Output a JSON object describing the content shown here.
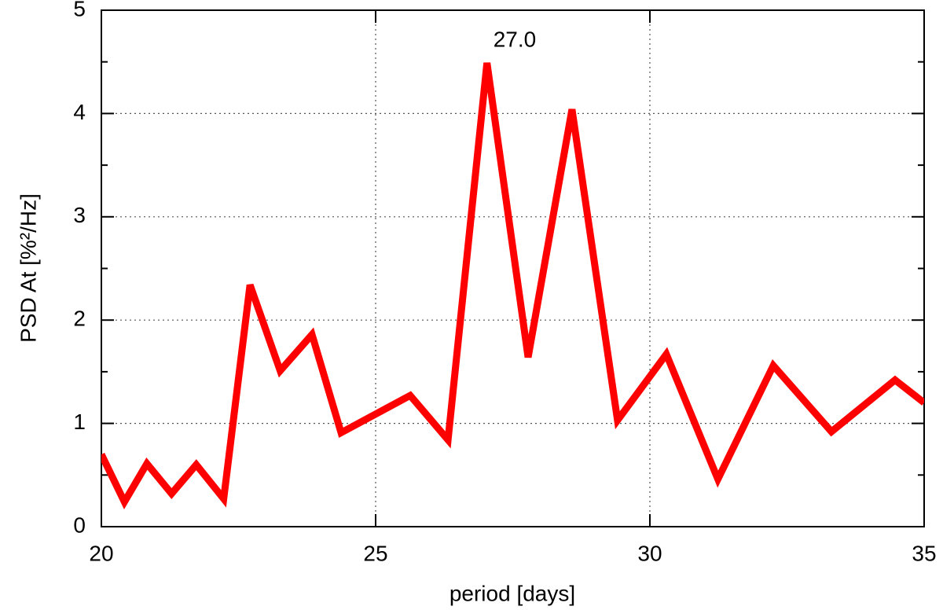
{
  "chart_data": {
    "type": "line",
    "xlabel": "period [days]",
    "ylabel": "PSD At [%²/Hz]",
    "annotation": "27.0",
    "x": [
      20.0,
      20.42,
      20.83,
      21.28,
      21.73,
      22.23,
      22.71,
      23.26,
      23.84,
      24.37,
      25.63,
      26.32,
      27.03,
      27.78,
      28.58,
      29.41,
      30.3,
      31.24,
      32.25,
      33.31,
      34.47,
      35.0
    ],
    "series": [
      {
        "color": "#ff0000",
        "values": [
          0.7,
          0.24,
          0.61,
          0.32,
          0.6,
          0.27,
          2.34,
          1.51,
          1.86,
          0.91,
          1.27,
          0.84,
          4.49,
          1.64,
          4.04,
          1.03,
          1.67,
          0.46,
          1.56,
          0.92,
          1.42,
          1.2
        ]
      }
    ],
    "xlim": [
      20,
      35
    ],
    "ylim": [
      0,
      5
    ],
    "xticks": [
      20,
      25,
      30,
      35
    ],
    "yticks": [
      0,
      1,
      2,
      3,
      4,
      5
    ],
    "yminorticks": [
      0.5,
      1.5,
      2.5,
      3.5,
      4.5
    ],
    "grid": true
  }
}
